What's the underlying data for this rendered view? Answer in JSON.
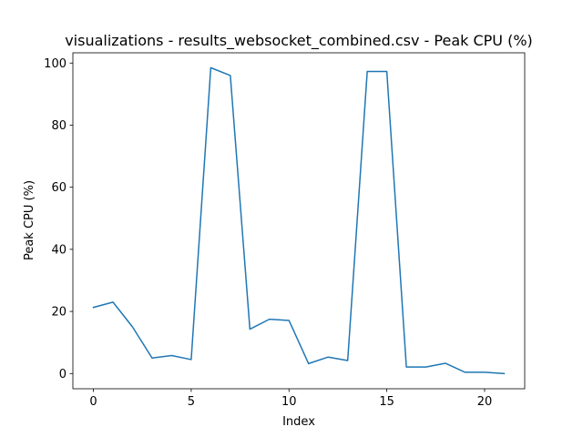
{
  "chart_data": {
    "type": "line",
    "title": "visualizations - results_websocket_combined.csv - Peak CPU (%)",
    "xlabel": "Index",
    "ylabel": "Peak CPU (%)",
    "xlim": [
      -1.05,
      22.05
    ],
    "ylim": [
      -4.9,
      103.3
    ],
    "xticks": [
      0,
      5,
      10,
      15,
      20
    ],
    "yticks": [
      0,
      20,
      40,
      60,
      80,
      100
    ],
    "grid": false,
    "line_color": "#1f77b4",
    "series": [
      {
        "x": [
          0,
          1,
          2,
          3,
          4,
          5,
          6,
          7,
          8,
          9,
          10,
          11,
          12,
          13,
          14,
          15,
          16,
          17,
          18,
          19,
          20,
          21
        ],
        "values": [
          21.3,
          23.0,
          15.0,
          5.0,
          5.8,
          4.5,
          98.5,
          96.0,
          14.3,
          17.5,
          17.1,
          3.2,
          5.3,
          4.2,
          97.3,
          97.3,
          2.1,
          2.1,
          3.3,
          0.4,
          0.4,
          0.0
        ]
      }
    ]
  }
}
